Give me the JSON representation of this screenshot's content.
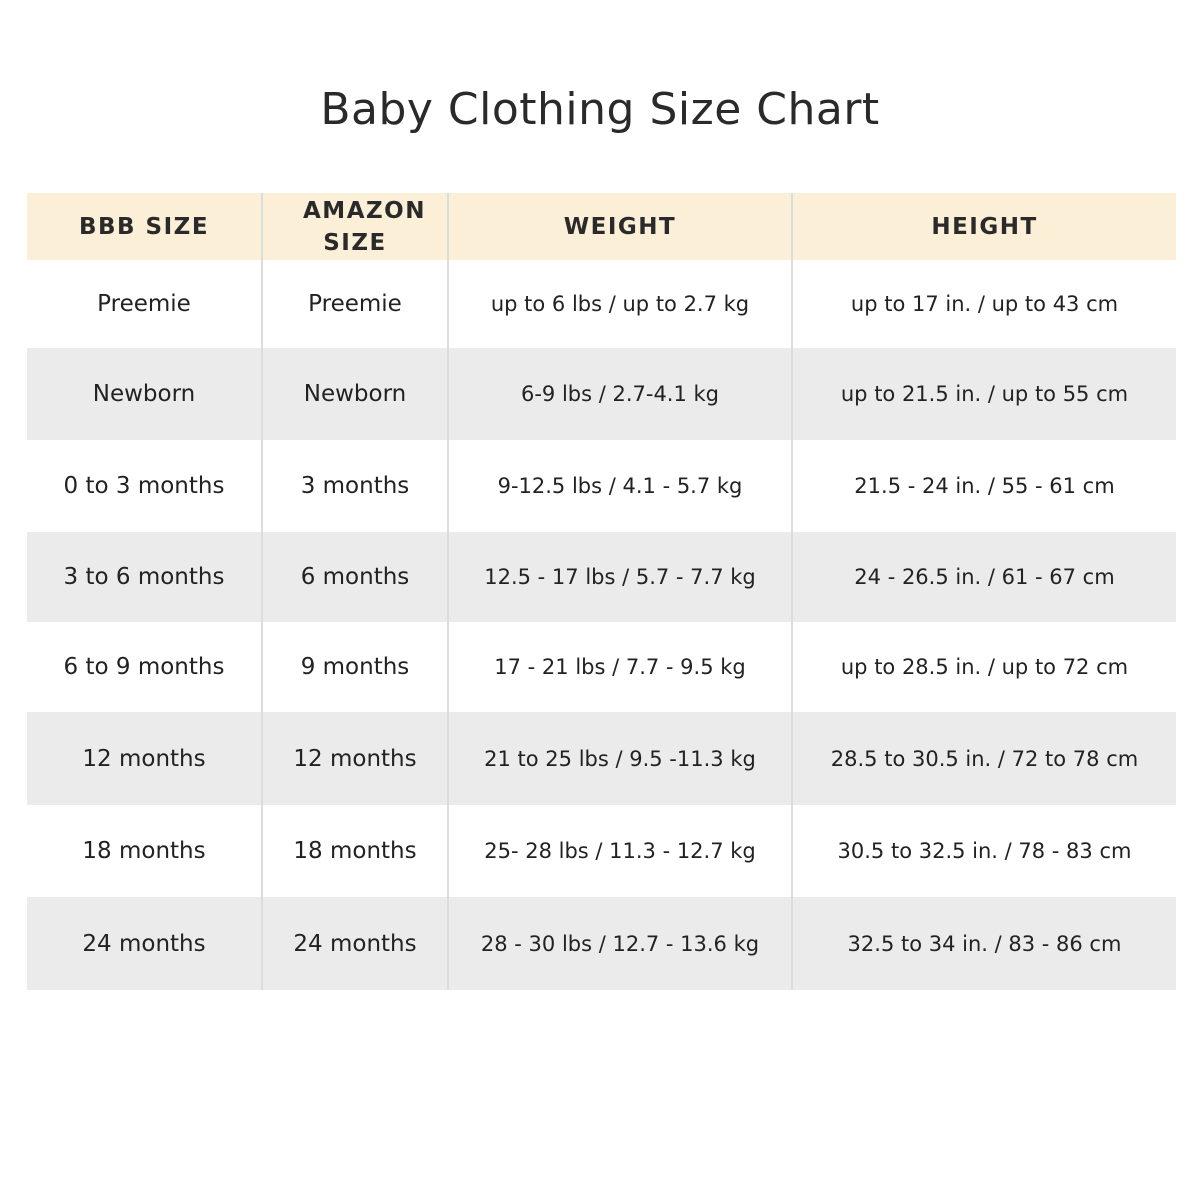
{
  "title": "Baby Clothing Size Chart",
  "colors": {
    "header_bg": "#fcefd8",
    "alt_row_bg": "#ebebeb"
  },
  "table": {
    "headers": [
      "BBB SIZE",
      "AMAZON SIZE",
      "WEIGHT",
      "HEIGHT"
    ],
    "rows": [
      [
        "Preemie",
        "Preemie",
        "up to 6 lbs / up to 2.7 kg",
        "up to 17 in. / up to 43 cm"
      ],
      [
        "Newborn",
        "Newborn",
        "6-9 lbs / 2.7-4.1 kg",
        "up to 21.5 in. / up to 55 cm"
      ],
      [
        "0 to 3 months",
        "3 months",
        "9-12.5 lbs / 4.1 - 5.7 kg",
        "21.5 - 24 in. / 55 - 61 cm"
      ],
      [
        "3 to 6 months",
        "6 months",
        "12.5 - 17 lbs / 5.7 - 7.7 kg",
        "24 - 26.5 in. / 61 - 67 cm"
      ],
      [
        "6 to 9 months",
        "9 months",
        "17 - 21 lbs / 7.7 - 9.5 kg",
        "up to 28.5 in. / up to 72 cm"
      ],
      [
        "12 months",
        "12 months",
        "21 to 25 lbs / 9.5 -11.3 kg",
        "28.5 to 30.5 in. / 72 to 78 cm"
      ],
      [
        "18 months",
        "18 months",
        "25- 28 lbs / 11.3 - 12.7 kg",
        "30.5 to 32.5 in. / 78 - 83 cm"
      ],
      [
        "24 months",
        "24 months",
        "28 - 30 lbs / 12.7 - 13.6 kg",
        "32.5 to 34 in. / 83 - 86 cm"
      ]
    ]
  }
}
